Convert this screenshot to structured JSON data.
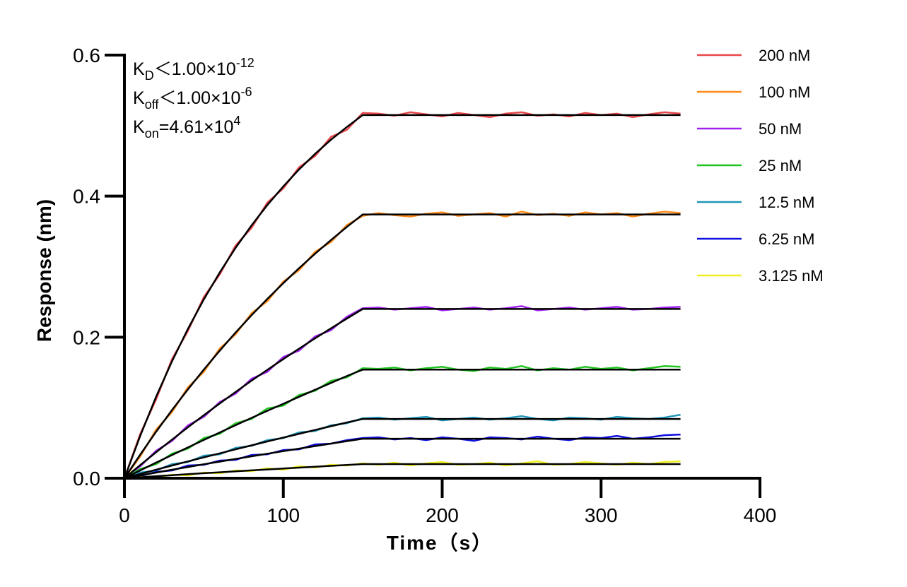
{
  "chart_data": {
    "type": "line",
    "xlabel": "Time（s）",
    "ylabel": "Response (nm)",
    "xlim": [
      0,
      400
    ],
    "ylim": [
      0,
      0.6
    ],
    "xticks": [
      0,
      100,
      200,
      300,
      400
    ],
    "yticks": [
      {
        "value": 0,
        "label": "0.0"
      },
      0.2,
      0.4,
      0.6
    ],
    "legend": "right",
    "annotations": [
      {
        "k": "K",
        "sub": "D",
        "text": "＜1.00×10",
        "sup": "-12"
      },
      {
        "k": "K",
        "sub": "off",
        "text": "＜1.00×10",
        "sup": "-6"
      },
      {
        "k": "K",
        "sub": "on",
        "text": "=4.61×10",
        "sup": "4"
      }
    ],
    "fit_color": "#000000",
    "x": [
      0,
      10,
      20,
      30,
      40,
      50,
      60,
      70,
      80,
      90,
      100,
      110,
      120,
      130,
      140,
      150,
      160,
      170,
      180,
      190,
      200,
      210,
      220,
      230,
      240,
      250,
      260,
      270,
      280,
      290,
      300,
      310,
      320,
      330,
      340,
      350
    ],
    "series": [
      {
        "name": "200 nM",
        "color": "#e8474a",
        "values": [
          0,
          0.063,
          0.112,
          0.169,
          0.209,
          0.257,
          0.289,
          0.33,
          0.355,
          0.391,
          0.411,
          0.441,
          0.457,
          0.484,
          0.494,
          0.518,
          0.517,
          0.514,
          0.519,
          0.516,
          0.513,
          0.518,
          0.515,
          0.512,
          0.517,
          0.519,
          0.514,
          0.516,
          0.513,
          0.518,
          0.515,
          0.517,
          0.512,
          0.516,
          0.519,
          0.517
        ],
        "fit": [
          0,
          0.0605,
          0.1157,
          0.166,
          0.2119,
          0.2537,
          0.2919,
          0.3267,
          0.3585,
          0.3875,
          0.4139,
          0.438,
          0.46,
          0.48,
          0.498,
          0.515,
          0.515,
          0.515,
          0.515,
          0.515,
          0.515,
          0.515,
          0.515,
          0.515,
          0.515,
          0.515,
          0.515,
          0.515,
          0.515,
          0.515,
          0.515,
          0.515,
          0.515,
          0.515,
          0.515,
          0.515
        ]
      },
      {
        "name": "100 nM",
        "color": "#ff8c1a",
        "values": [
          0,
          0.031,
          0.069,
          0.094,
          0.129,
          0.151,
          0.184,
          0.204,
          0.234,
          0.251,
          0.279,
          0.295,
          0.321,
          0.335,
          0.359,
          0.372,
          0.376,
          0.373,
          0.371,
          0.375,
          0.377,
          0.372,
          0.374,
          0.376,
          0.371,
          0.378,
          0.373,
          0.375,
          0.372,
          0.377,
          0.374,
          0.376,
          0.371,
          0.375,
          0.378,
          0.376
        ],
        "fit": [
          0,
          0.0337,
          0.066,
          0.0968,
          0.1261,
          0.1542,
          0.181,
          0.2066,
          0.2311,
          0.2544,
          0.2767,
          0.298,
          0.3183,
          0.3378,
          0.3563,
          0.374,
          0.374,
          0.374,
          0.374,
          0.374,
          0.374,
          0.374,
          0.374,
          0.374,
          0.374,
          0.374,
          0.374,
          0.374,
          0.374,
          0.374,
          0.374,
          0.374,
          0.374,
          0.374,
          0.374,
          0.374
        ]
      },
      {
        "name": "50 nM",
        "color": "#a020f0",
        "values": [
          0,
          0.017,
          0.039,
          0.053,
          0.075,
          0.087,
          0.108,
          0.12,
          0.141,
          0.151,
          0.172,
          0.181,
          0.201,
          0.21,
          0.229,
          0.241,
          0.242,
          0.239,
          0.241,
          0.243,
          0.238,
          0.24,
          0.242,
          0.239,
          0.241,
          0.244,
          0.238,
          0.24,
          0.242,
          0.239,
          0.241,
          0.243,
          0.239,
          0.24,
          0.242,
          0.243
        ],
        "fit": [
          0,
          0.0187,
          0.037,
          0.0548,
          0.0723,
          0.0893,
          0.1061,
          0.1223,
          0.1383,
          0.1538,
          0.169,
          0.1838,
          0.1984,
          0.2126,
          0.2264,
          0.24,
          0.24,
          0.24,
          0.24,
          0.24,
          0.24,
          0.24,
          0.24,
          0.24,
          0.24,
          0.24,
          0.24,
          0.24,
          0.24,
          0.24,
          0.24,
          0.24,
          0.24,
          0.24,
          0.24,
          0.24
        ]
      },
      {
        "name": "25 nM",
        "color": "#22c322",
        "values": [
          0,
          0.013,
          0.02,
          0.035,
          0.042,
          0.057,
          0.063,
          0.078,
          0.084,
          0.099,
          0.103,
          0.118,
          0.124,
          0.138,
          0.143,
          0.156,
          0.155,
          0.157,
          0.153,
          0.156,
          0.158,
          0.154,
          0.152,
          0.157,
          0.155,
          0.159,
          0.153,
          0.156,
          0.154,
          0.158,
          0.155,
          0.157,
          0.153,
          0.156,
          0.159,
          0.158
        ],
        "fit": [
          0,
          0.0111,
          0.0221,
          0.033,
          0.0437,
          0.0543,
          0.0648,
          0.0752,
          0.0855,
          0.0957,
          0.1056,
          0.1155,
          0.1254,
          0.1351,
          0.1448,
          0.154,
          0.154,
          0.154,
          0.154,
          0.154,
          0.154,
          0.154,
          0.154,
          0.154,
          0.154,
          0.154,
          0.154,
          0.154,
          0.154,
          0.154,
          0.154,
          0.154,
          0.154,
          0.154,
          0.154,
          0.154
        ]
      },
      {
        "name": "12.5 nM",
        "color": "#2196b8",
        "values": [
          0,
          0.008,
          0.011,
          0.02,
          0.023,
          0.032,
          0.034,
          0.043,
          0.046,
          0.054,
          0.057,
          0.065,
          0.067,
          0.075,
          0.078,
          0.085,
          0.086,
          0.083,
          0.085,
          0.087,
          0.082,
          0.084,
          0.086,
          0.083,
          0.085,
          0.088,
          0.084,
          0.082,
          0.086,
          0.085,
          0.083,
          0.087,
          0.085,
          0.084,
          0.086,
          0.09
        ],
        "fit": [
          0,
          0.0061,
          0.0121,
          0.018,
          0.0238,
          0.0296,
          0.0353,
          0.041,
          0.0466,
          0.0522,
          0.0576,
          0.063,
          0.0684,
          0.0737,
          0.079,
          0.084,
          0.084,
          0.084,
          0.084,
          0.084,
          0.084,
          0.084,
          0.084,
          0.084,
          0.084,
          0.084,
          0.084,
          0.084,
          0.084,
          0.084,
          0.084,
          0.084,
          0.084,
          0.084,
          0.084,
          0.084
        ]
      },
      {
        "name": "6.25 nM",
        "color": "#1010e0",
        "values": [
          0,
          0.003,
          0.009,
          0.011,
          0.018,
          0.019,
          0.025,
          0.026,
          0.033,
          0.034,
          0.04,
          0.041,
          0.048,
          0.049,
          0.054,
          0.057,
          0.058,
          0.055,
          0.057,
          0.054,
          0.058,
          0.056,
          0.053,
          0.058,
          0.057,
          0.055,
          0.059,
          0.056,
          0.054,
          0.058,
          0.057,
          0.06,
          0.056,
          0.058,
          0.061,
          0.062
        ],
        "fit": [
          0,
          0.004,
          0.008,
          0.012,
          0.0159,
          0.0198,
          0.0235,
          0.0273,
          0.0311,
          0.0348,
          0.0384,
          0.042,
          0.0456,
          0.0491,
          0.0526,
          0.056,
          0.056,
          0.056,
          0.056,
          0.056,
          0.056,
          0.056,
          0.056,
          0.056,
          0.056,
          0.056,
          0.056,
          0.056,
          0.056,
          0.056,
          0.056,
          0.056,
          0.056,
          0.056,
          0.056,
          0.056
        ]
      },
      {
        "name": "3.125 nM",
        "color": "#f0f020",
        "values": [
          0,
          0.002,
          0.001,
          0.005,
          0.004,
          0.008,
          0.007,
          0.011,
          0.01,
          0.014,
          0.012,
          0.017,
          0.015,
          0.019,
          0.018,
          0.021,
          0.019,
          0.022,
          0.018,
          0.021,
          0.023,
          0.019,
          0.02,
          0.022,
          0.018,
          0.021,
          0.024,
          0.019,
          0.02,
          0.023,
          0.021,
          0.019,
          0.022,
          0.02,
          0.023,
          0.024
        ],
        "fit": [
          0,
          0.0014,
          0.0029,
          0.0043,
          0.0057,
          0.0071,
          0.0084,
          0.0098,
          0.0111,
          0.0124,
          0.0137,
          0.015,
          0.0163,
          0.0175,
          0.0188,
          0.02,
          0.02,
          0.02,
          0.02,
          0.02,
          0.02,
          0.02,
          0.02,
          0.02,
          0.02,
          0.02,
          0.02,
          0.02,
          0.02,
          0.02,
          0.02,
          0.02,
          0.02,
          0.02,
          0.02,
          0.02
        ]
      }
    ]
  }
}
